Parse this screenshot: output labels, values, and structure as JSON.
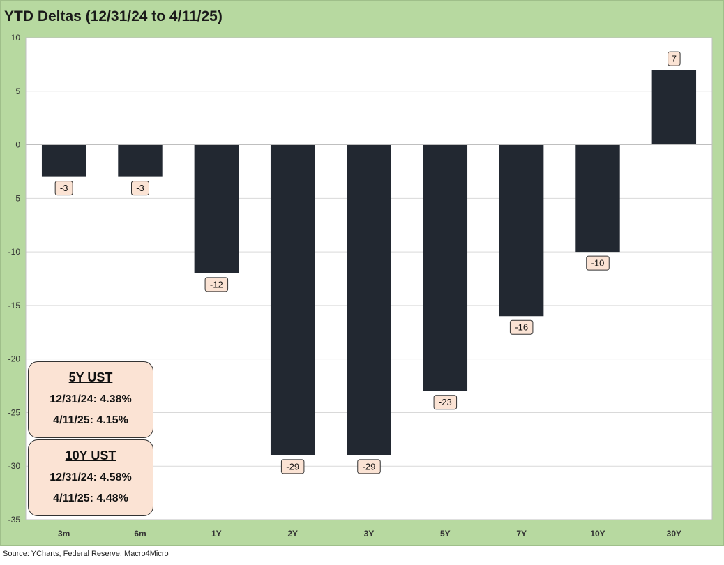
{
  "chart_data": {
    "type": "bar",
    "title": "YTD Deltas (12/31/24 to 4/11/25)",
    "categories": [
      "3m",
      "6m",
      "1Y",
      "2Y",
      "3Y",
      "5Y",
      "7Y",
      "10Y",
      "30Y"
    ],
    "values": [
      -3,
      -3,
      -12,
      -29,
      -29,
      -23,
      -16,
      -10,
      7
    ],
    "data_labels": [
      "-3",
      "-3",
      "-12",
      "-29",
      "-29",
      "-23",
      "-16",
      "-10",
      "7"
    ],
    "ylim": [
      -35,
      10
    ],
    "yticks": [
      10,
      5,
      0,
      -5,
      -10,
      -15,
      -20,
      -25,
      -30,
      -35
    ],
    "grid": true,
    "bar_color": "#222831",
    "label_bg": "#fbe3d4",
    "xlabel": "",
    "ylabel": ""
  },
  "annotations": {
    "ust5": {
      "header": "5Y UST",
      "line1": "12/31/24: 4.38%",
      "line2": "4/11/25: 4.15%"
    },
    "ust10": {
      "header": "10Y UST",
      "line1": "12/31/24: 4.58%",
      "line2": "4/11/25: 4.48%"
    }
  },
  "source": "Source: YCharts, Federal Reserve, Macro4Micro",
  "colors": {
    "frame_bg": "#b7d9a0",
    "plot_bg": "#ffffff",
    "grid": "#d9d9d9"
  }
}
